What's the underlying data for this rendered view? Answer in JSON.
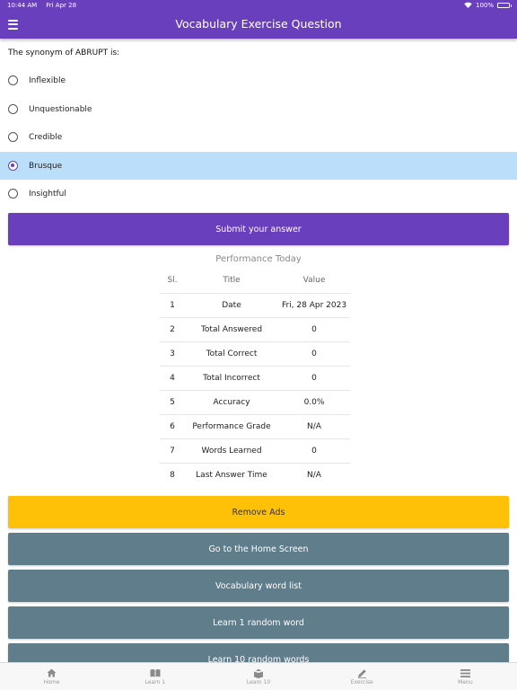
{
  "status_bar": {
    "time": "10:44 AM",
    "date": "Fri Apr 28",
    "battery": "100%"
  },
  "app_bar": {
    "title": "Vocabulary Exercise Question",
    "menu_icon": "hamburger-menu-icon"
  },
  "question": {
    "text": "The synonym of ABRUPT is:"
  },
  "options": [
    {
      "label": "Inflexible",
      "selected": false
    },
    {
      "label": "Unquestionable",
      "selected": false
    },
    {
      "label": "Credible",
      "selected": false
    },
    {
      "label": "Brusque",
      "selected": true
    },
    {
      "label": "Insightful",
      "selected": false
    }
  ],
  "submit_button": {
    "label": "Submit your answer"
  },
  "performance": {
    "title": "Performance Today",
    "headers": {
      "sl": "Sl.",
      "title": "Title",
      "value": "Value"
    },
    "rows": [
      {
        "sl": "1",
        "title": "Date",
        "value": "Fri, 28 Apr 2023"
      },
      {
        "sl": "2",
        "title": "Total Answered",
        "value": "0"
      },
      {
        "sl": "3",
        "title": "Total Correct",
        "value": "0"
      },
      {
        "sl": "4",
        "title": "Total Incorrect",
        "value": "0"
      },
      {
        "sl": "5",
        "title": "Accuracy",
        "value": "0.0%"
      },
      {
        "sl": "6",
        "title": "Performance Grade",
        "value": "N/A"
      },
      {
        "sl": "7",
        "title": "Words Learned",
        "value": "0"
      },
      {
        "sl": "8",
        "title": "Last Answer Time",
        "value": "N/A"
      }
    ]
  },
  "action_buttons": {
    "remove_ads": "Remove Ads",
    "home_screen": "Go to the Home Screen",
    "word_list": "Vocabulary word list",
    "learn_1": "Learn 1 random word",
    "learn_10": "Learn 10 random words"
  },
  "bottom_nav": [
    {
      "label": "Home",
      "icon": "home-icon"
    },
    {
      "label": "Learn 1",
      "icon": "book-icon"
    },
    {
      "label": "Learn 10",
      "icon": "open-book-icon"
    },
    {
      "label": "Exercise",
      "icon": "pencil-icon"
    },
    {
      "label": "Menu",
      "icon": "menu-icon"
    }
  ],
  "colors": {
    "primary": "#6a3fbd",
    "selected_row": "#bbdefb",
    "ads_button": "#ffc107",
    "secondary_button": "#607d8b"
  }
}
